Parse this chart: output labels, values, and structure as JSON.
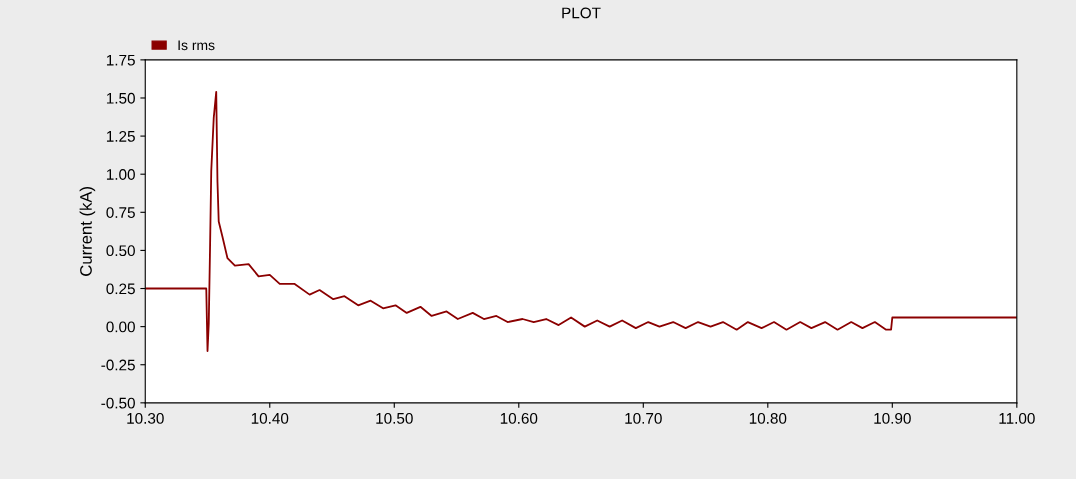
{
  "chart_data": {
    "type": "line",
    "title": "PLOT",
    "ylabel": "Current (kA)",
    "legend": "top left",
    "grid": false,
    "marker": "none",
    "line_style": "solid",
    "xlim": [
      10.3,
      11.0
    ],
    "xticks": [
      {
        "value": 10.3,
        "label": "10.30"
      },
      {
        "value": 10.4,
        "label": "10.40"
      },
      {
        "value": 10.5,
        "label": "10.50"
      },
      {
        "value": 10.6,
        "label": "10.60"
      },
      {
        "value": 10.7,
        "label": "10.70"
      },
      {
        "value": 10.8,
        "label": "10.80"
      },
      {
        "value": 10.9,
        "label": "10.90"
      },
      {
        "value": 11.0,
        "label": "11.00"
      }
    ],
    "ylim": [
      -0.5,
      1.75
    ],
    "yticks": [
      {
        "value": -0.5,
        "label": "-0.50"
      },
      {
        "value": -0.25,
        "label": "-0.25"
      },
      {
        "value": 0,
        "label": "0.00"
      },
      {
        "value": 0.25,
        "label": "0.25"
      },
      {
        "value": 0.5,
        "label": "0.50"
      },
      {
        "value": 0.75,
        "label": "0.75"
      },
      {
        "value": 1.0,
        "label": "1.00"
      },
      {
        "value": 1.25,
        "label": "1.25"
      },
      {
        "value": 1.5,
        "label": "1.50"
      },
      {
        "value": 1.75,
        "label": "1.75"
      }
    ],
    "series": [
      {
        "name": "Is rms",
        "color": "#8b0000",
        "x": [
          10.3,
          10.349,
          10.35,
          10.351,
          10.352,
          10.353,
          10.355,
          10.357,
          10.358,
          10.359,
          10.362,
          10.366,
          10.372,
          10.383,
          10.391,
          10.4,
          10.408,
          10.42,
          10.432,
          10.44,
          10.451,
          10.46,
          10.471,
          10.481,
          10.491,
          10.501,
          10.51,
          10.521,
          10.53,
          10.542,
          10.551,
          10.563,
          10.572,
          10.582,
          10.591,
          10.603,
          10.612,
          10.622,
          10.632,
          10.642,
          10.653,
          10.663,
          10.673,
          10.683,
          10.694,
          10.704,
          10.713,
          10.724,
          10.734,
          10.744,
          10.754,
          10.764,
          10.775,
          10.784,
          10.795,
          10.805,
          10.815,
          10.826,
          10.835,
          10.846,
          10.856,
          10.867,
          10.876,
          10.886,
          10.895,
          10.899,
          10.9,
          11.0
        ],
        "values": [
          0.25,
          0.25,
          -0.16,
          0.02,
          0.5,
          1.02,
          1.37,
          1.54,
          0.95,
          0.69,
          0.59,
          0.45,
          0.4,
          0.41,
          0.33,
          0.34,
          0.28,
          0.28,
          0.21,
          0.24,
          0.18,
          0.2,
          0.14,
          0.17,
          0.12,
          0.14,
          0.09,
          0.13,
          0.07,
          0.1,
          0.05,
          0.09,
          0.05,
          0.07,
          0.03,
          0.05,
          0.03,
          0.05,
          0.01,
          0.06,
          0.0,
          0.04,
          0.0,
          0.04,
          -0.01,
          0.03,
          0.0,
          0.03,
          -0.01,
          0.03,
          0.0,
          0.03,
          -0.02,
          0.03,
          -0.01,
          0.03,
          -0.02,
          0.03,
          -0.01,
          0.03,
          -0.02,
          0.03,
          -0.01,
          0.03,
          -0.02,
          -0.02,
          0.06,
          0.06
        ]
      }
    ]
  }
}
